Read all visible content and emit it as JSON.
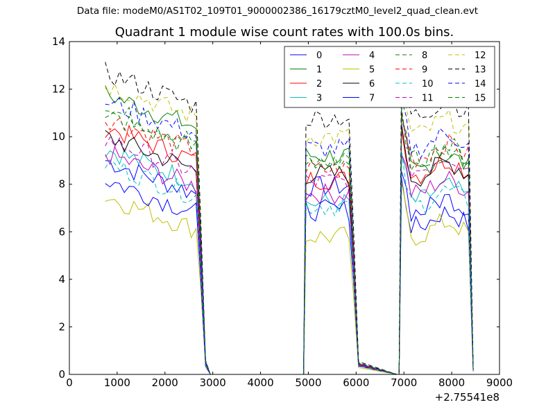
{
  "figure": {
    "supertitle": "Data file: modeM0/AS1T02_109T01_9000002386_16179cztM0_level2_quad_clean.evt"
  },
  "chart_data": {
    "type": "line",
    "title": "Quadrant 1 module wise count rates with 100.0s bins.",
    "xlabel": "",
    "ylabel": "",
    "x_offset_label": "+2.75541e8",
    "xlim": [
      0,
      9000
    ],
    "ylim": [
      0,
      14
    ],
    "xticks": [
      0,
      1000,
      2000,
      3000,
      4000,
      5000,
      6000,
      7000,
      8000,
      9000
    ],
    "yticks": [
      0,
      2,
      4,
      6,
      8,
      10,
      12,
      14
    ],
    "grid": false,
    "legend_placement": "top-right",
    "legend_columns": 4,
    "segments": [
      {
        "start": 750,
        "end": 2650,
        "step": 100,
        "fall": [
          2750,
          2850,
          2950
        ]
      },
      {
        "start": 4950,
        "end": 5850,
        "step": 100,
        "fall": [
          5950,
          6050
        ]
      },
      {
        "start": 6950,
        "end": 8350,
        "step": 100,
        "fall": [
          8450
        ]
      }
    ],
    "series": [
      {
        "name": "0",
        "color": "#0000ff",
        "dash": "solid",
        "levels": [
          8.1,
          7.9,
          6.5
        ]
      },
      {
        "name": "1",
        "color": "#008000",
        "dash": "solid",
        "levels": [
          10.9,
          9.2,
          8.9
        ]
      },
      {
        "name": "2",
        "color": "#ff0000",
        "dash": "solid",
        "levels": [
          9.5,
          8.2,
          8.7
        ]
      },
      {
        "name": "3",
        "color": "#00bfbf",
        "dash": "solid",
        "levels": [
          8.6,
          7.2,
          7.6
        ]
      },
      {
        "name": "4",
        "color": "#bf00bf",
        "dash": "solid",
        "levels": [
          8.4,
          7.6,
          7.9
        ]
      },
      {
        "name": "5",
        "color": "#bfbf00",
        "dash": "solid",
        "levels": [
          6.6,
          5.8,
          6.1
        ]
      },
      {
        "name": "6",
        "color": "#000000",
        "dash": "solid",
        "levels": [
          9.1,
          8.4,
          8.6
        ]
      },
      {
        "name": "7",
        "color": "#0000ff",
        "dash": "solid",
        "levels": [
          7.3,
          6.9,
          7.1
        ]
      },
      {
        "name": "8",
        "color": "#008000",
        "dash": "dashed",
        "levels": [
          10.3,
          8.9,
          9.2
        ]
      },
      {
        "name": "9",
        "color": "#ff0000",
        "dash": "dashed",
        "levels": [
          9.9,
          8.6,
          9.4
        ]
      },
      {
        "name": "10",
        "color": "#00bfbf",
        "dash": "dashed",
        "levels": [
          8.0,
          7.1,
          7.4
        ]
      },
      {
        "name": "11",
        "color": "#bf00bf",
        "dash": "dashed",
        "levels": [
          9.0,
          8.1,
          8.9
        ]
      },
      {
        "name": "12",
        "color": "#bfbf00",
        "dash": "dashed",
        "levels": [
          11.3,
          10.0,
          10.4
        ]
      },
      {
        "name": "13",
        "color": "#000000",
        "dash": "dashed",
        "levels": [
          11.8,
          10.8,
          11.2
        ]
      },
      {
        "name": "14",
        "color": "#0000ff",
        "dash": "dashed",
        "levels": [
          10.6,
          9.5,
          9.8
        ]
      },
      {
        "name": "15",
        "color": "#008000",
        "dash": "dashed",
        "levels": [
          10.0,
          8.9,
          9.3
        ]
      }
    ]
  }
}
